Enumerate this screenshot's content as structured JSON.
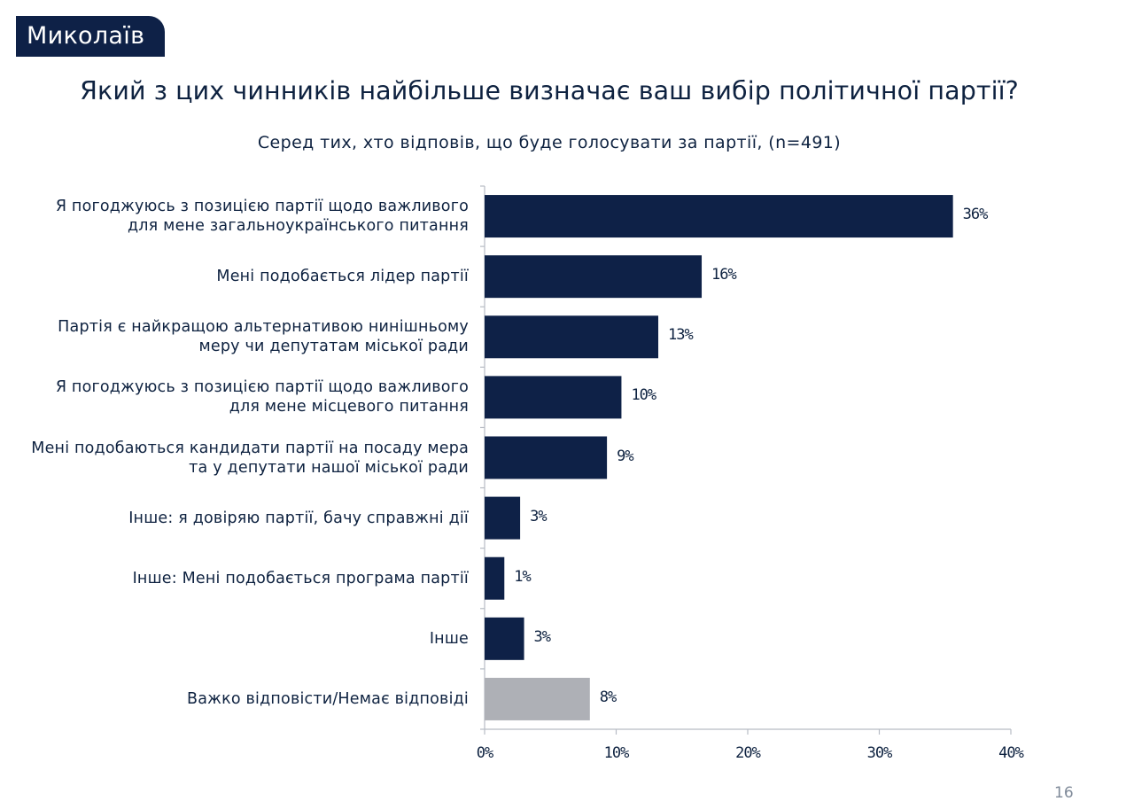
{
  "header": {
    "city_tab": "Миколаїв",
    "title": "Який з цих чинників найбільше визначає ваш вибір політичної партії?",
    "subtitle": "Серед тих, хто відповів, що буде голосувати за партії, (n=491)"
  },
  "colors": {
    "bar_primary": "#0e2147",
    "bar_secondary": "#aeb0b6",
    "axis": "#b7bcc4"
  },
  "chart_data": {
    "type": "bar",
    "orientation": "horizontal",
    "categories": [
      [
        "Я погоджуюсь з позицією партії щодо важливого",
        "для мене загальноукраїнського питання"
      ],
      [
        "Мені подобається лідер партії"
      ],
      [
        "Партія є найкращою альтернативою нинішньому",
        "меру чи депутатам міської ради"
      ],
      [
        "Я погоджуюсь з позицією партії щодо важливого",
        "для мене місцевого питання"
      ],
      [
        "Мені подобаються кандидати партії на посаду мера",
        "та у депутати нашої міської ради"
      ],
      [
        "Інше: я довіряю партії, бачу справжні дії"
      ],
      [
        "Інше: Мені подобається програма партії"
      ],
      [
        "Інше"
      ],
      [
        "Важко відповісти/Немає відповіді"
      ]
    ],
    "values": [
      35.6,
      16.5,
      13.2,
      10.4,
      9.3,
      2.7,
      1.5,
      3.0,
      8.0
    ],
    "value_labels": [
      "36%",
      "16%",
      "13%",
      "10%",
      "9%",
      "3%",
      "1%",
      "3%",
      "8%"
    ],
    "highlight": [
      "primary",
      "primary",
      "primary",
      "primary",
      "primary",
      "primary",
      "primary",
      "primary",
      "secondary"
    ],
    "xlim": [
      0,
      40
    ],
    "x_ticks": [
      0,
      10,
      20,
      30,
      40
    ],
    "x_tick_labels": [
      "0%",
      "10%",
      "20%",
      "30%",
      "40%"
    ],
    "grid": false
  },
  "footer": {
    "page_number": "16"
  }
}
